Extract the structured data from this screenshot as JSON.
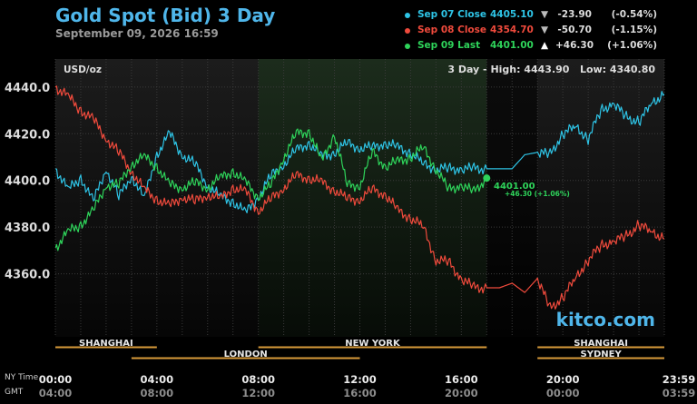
{
  "header": {
    "title": "Gold Spot (Bid) 3 Day",
    "subtitle": "September 09, 2026 16:59"
  },
  "legend": [
    {
      "name": "Sep 07 Close",
      "price": "4405.10",
      "arrow": "▼",
      "change": "-23.90",
      "percent": "(-0.54%)",
      "color": "#2ec4e6"
    },
    {
      "name": "Sep 08 Close",
      "price": "4354.70",
      "arrow": "▼",
      "change": "-50.70",
      "percent": "(-1.15%)",
      "color": "#ef4a3c"
    },
    {
      "name": "Sep 09 Last",
      "price": "4401.00",
      "arrow": "▲",
      "change": "+46.30",
      "percent": "(+1.06%)",
      "color": "#2ed35a"
    }
  ],
  "chart_info": {
    "unit": "USD/oz",
    "range_text": "3 Day - High: 4443.90   Low: 4340.80",
    "watermark": "kitco.com",
    "last_price_label": "4401.00",
    "last_change_label": "+46.30 (+1.06%)"
  },
  "sessions": [
    {
      "name": "SHANGHAI",
      "start": 0,
      "end": 4
    },
    {
      "name": "LONDON",
      "start": 3,
      "end": 12
    },
    {
      "name": "NEW YORK",
      "start": 8,
      "end": 17
    },
    {
      "name": "SHANGHAI",
      "start": 19,
      "end": 24
    },
    {
      "name": "SYDNEY",
      "start": 19,
      "end": 24
    }
  ],
  "time_axis": {
    "ny_label": "NY Time",
    "gmt_label": "GMT",
    "ny_ticks": [
      "00:00",
      "04:00",
      "08:00",
      "12:00",
      "16:00",
      "20:00",
      "23:59"
    ],
    "gmt_ticks": [
      "04:00",
      "08:00",
      "12:00",
      "16:00",
      "20:00",
      "00:00",
      "03:59"
    ]
  },
  "chart_data": {
    "type": "line",
    "ylim": [
      4333,
      4452
    ],
    "xlim": [
      0,
      24
    ],
    "ytick_labels": [
      "4440.0",
      "4420.0",
      "4400.0",
      "4380.0",
      "4360.0"
    ],
    "yticks": [
      4440,
      4420,
      4400,
      4380,
      4360
    ],
    "grid": true,
    "series": [
      {
        "name": "Sep 07 Close",
        "color": "#2ec4e6",
        "x": [
          0,
          0.5,
          1,
          1.5,
          2,
          2.5,
          3,
          3.5,
          4,
          4.5,
          5,
          5.5,
          6,
          6.5,
          7,
          7.5,
          8,
          8.5,
          9,
          9.5,
          10,
          10.5,
          11,
          11.5,
          12,
          12.5,
          13,
          13.5,
          14,
          14.5,
          15,
          15.5,
          16,
          16.5,
          17,
          17.5,
          18,
          18.5,
          19,
          19.5,
          20,
          20.5,
          21,
          21.5,
          22,
          22.5,
          23,
          23.5,
          24
        ],
        "y": [
          4405,
          4396,
          4401,
          4391,
          4405,
          4393,
          4402,
          4392,
          4411,
          4420,
          4411,
          4407,
          4398,
          4393,
          4391,
          4386,
          4393,
          4402,
          4407,
          4413,
          4416,
          4410,
          4412,
          4416,
          4414,
          4414,
          4416,
          4414,
          4412,
          4407,
          4405,
          4405,
          4405,
          4405,
          4405,
          4405,
          4405,
          4411,
          4412,
          4411,
          4420,
          4423,
          4418,
          4430,
          4433,
          4427,
          4425,
          4433,
          4437
        ]
      },
      {
        "name": "Sep 08 Close",
        "color": "#ef4a3c",
        "x": [
          0,
          0.5,
          1,
          1.5,
          2,
          2.5,
          3,
          3.5,
          4,
          4.5,
          5,
          5.5,
          6,
          6.5,
          7,
          7.5,
          8,
          8.5,
          9,
          9.5,
          10,
          10.5,
          11,
          11.5,
          12,
          12.5,
          13,
          13.5,
          14,
          14.5,
          15,
          15.5,
          16,
          16.5,
          17,
          17.5,
          18,
          18.5,
          19,
          19.5,
          20,
          20.5,
          21,
          21.5,
          22,
          22.5,
          23,
          23.5,
          24
        ],
        "y": [
          4440,
          4436,
          4430,
          4426,
          4418,
          4412,
          4404,
          4396,
          4392,
          4389,
          4393,
          4391,
          4394,
          4392,
          4397,
          4395,
          4387,
          4392,
          4397,
          4402,
          4401,
          4399,
          4396,
          4392,
          4392,
          4396,
          4394,
          4387,
          4384,
          4380,
          4366,
          4365,
          4358,
          4354,
          4354,
          4354,
          4356,
          4352,
          4358,
          4345,
          4350,
          4358,
          4366,
          4372,
          4374,
          4376,
          4381,
          4378,
          4375
        ]
      },
      {
        "name": "Sep 09 Last",
        "color": "#2ed35a",
        "x": [
          0,
          0.5,
          1,
          1.5,
          2,
          2.5,
          3,
          3.5,
          4,
          4.5,
          5,
          5.5,
          6,
          6.5,
          7,
          7.5,
          8,
          8.5,
          9,
          9.5,
          10,
          10.5,
          11,
          11.5,
          12,
          12.5,
          13,
          13.5,
          14,
          14.5,
          15,
          15.5,
          16,
          16.5,
          17
        ],
        "y": [
          4371,
          4378,
          4381,
          4387,
          4398,
          4398,
          4407,
          4410,
          4406,
          4398,
          4397,
          4399,
          4397,
          4401,
          4404,
          4399,
          4393,
          4398,
          4410,
          4420,
          4421,
          4408,
          4420,
          4398,
          4398,
          4412,
          4406,
          4408,
          4410,
          4414,
          4405,
          4396,
          4398,
          4395,
          4401
        ]
      }
    ]
  }
}
